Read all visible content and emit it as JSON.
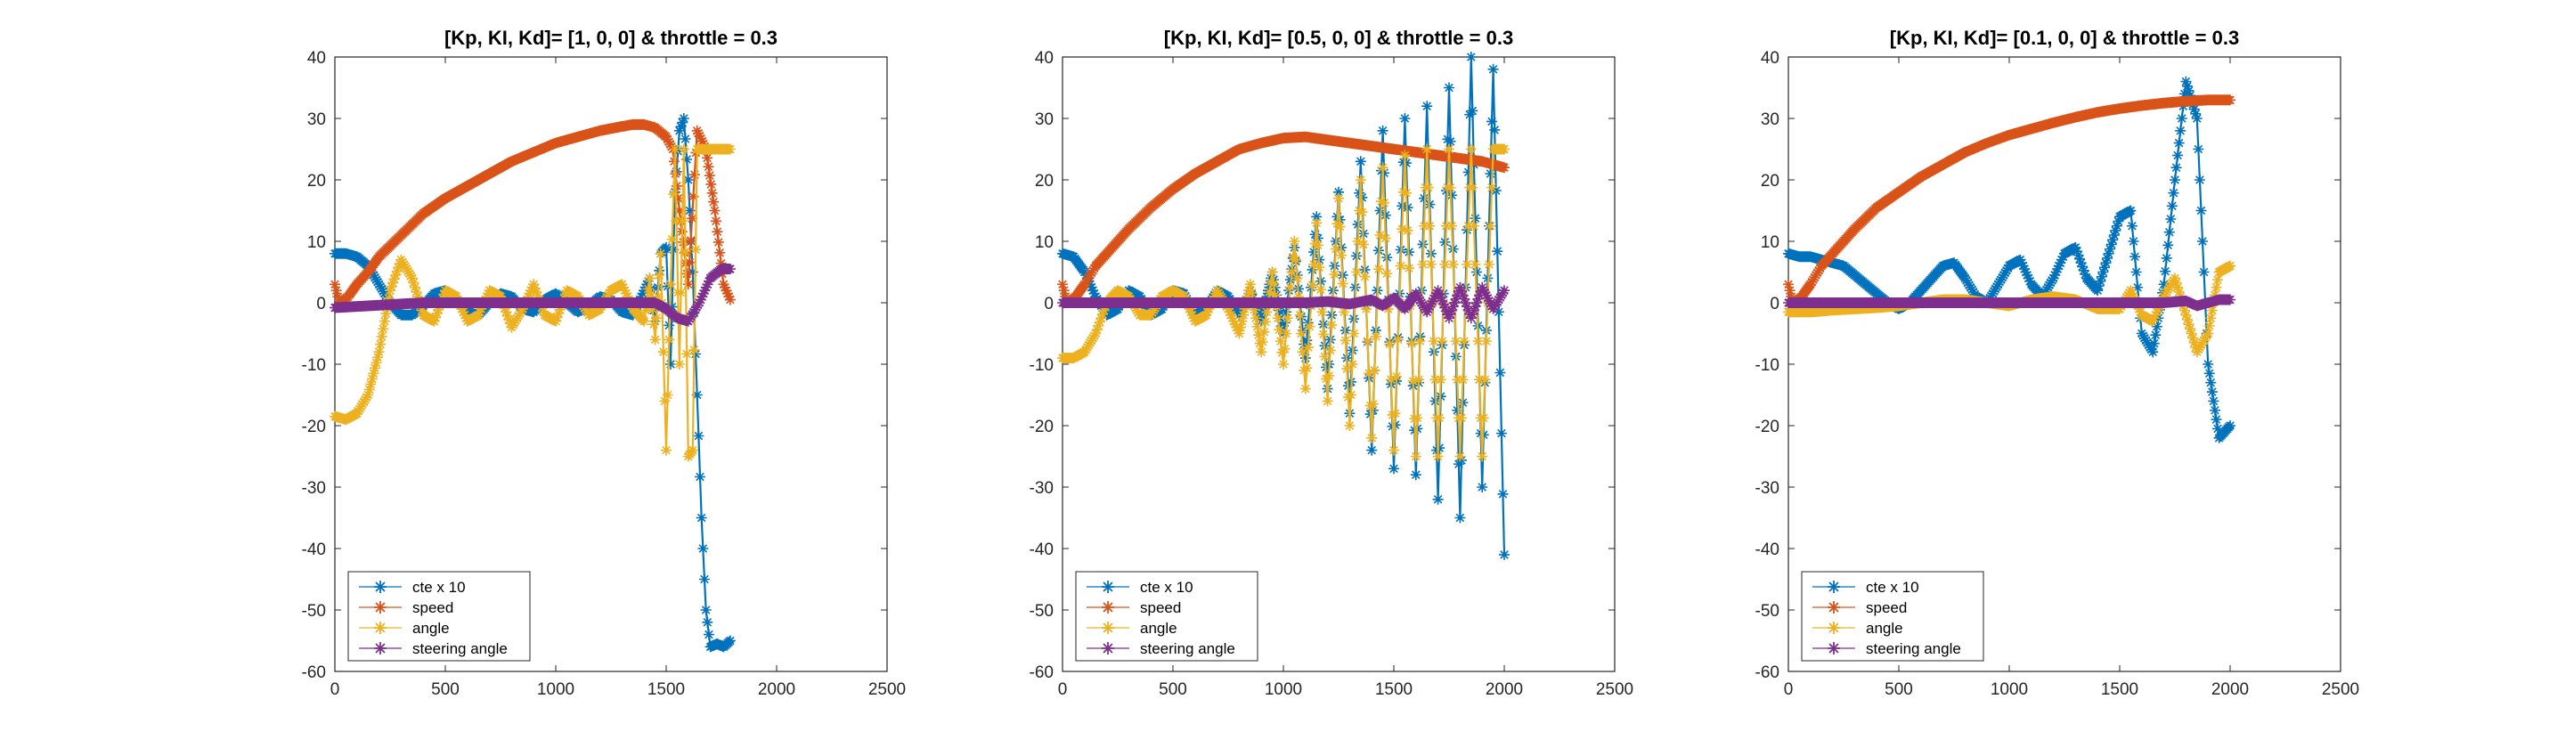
{
  "chart_data": [
    {
      "type": "line",
      "title": "[Kp, KI, Kd]= [1, 0, 0] & throttle = 0.3",
      "xlabel": "",
      "ylabel": "",
      "xlim": [
        0,
        2500
      ],
      "ylim": [
        -60,
        40
      ],
      "xticks": [
        0,
        500,
        1000,
        1500,
        2000,
        2500
      ],
      "yticks": [
        -60,
        -50,
        -40,
        -30,
        -20,
        -10,
        0,
        10,
        20,
        30,
        40
      ],
      "grid": false,
      "legend_position": "bottom-left",
      "series": [
        {
          "name": "cte x 10",
          "color": "#0072BD",
          "x": [
            0,
            50,
            100,
            150,
            200,
            250,
            300,
            350,
            400,
            450,
            500,
            550,
            600,
            650,
            700,
            750,
            800,
            850,
            900,
            950,
            1000,
            1050,
            1100,
            1150,
            1200,
            1250,
            1300,
            1350,
            1400,
            1425,
            1450,
            1475,
            1500,
            1520,
            1540,
            1560,
            1580,
            1600,
            1620,
            1640,
            1660,
            1680,
            1700,
            1730,
            1760,
            1790
          ],
          "y": [
            8,
            8,
            7.5,
            6,
            3,
            0,
            -2,
            -2,
            -0.5,
            1.5,
            2,
            0.5,
            -1.5,
            -2,
            0,
            1.5,
            1,
            -1,
            -1.5,
            0.5,
            1.5,
            0,
            -1.5,
            -0.5,
            1,
            0.5,
            -1.5,
            -2,
            2,
            4,
            -3,
            8,
            9,
            -10,
            18,
            28,
            30,
            20,
            5,
            -15,
            -35,
            -50,
            -56,
            -55.5,
            -56,
            -55
          ]
        },
        {
          "name": "speed",
          "color": "#D95319",
          "x": [
            0,
            20,
            40,
            60,
            100,
            150,
            200,
            300,
            400,
            500,
            600,
            700,
            800,
            900,
            1000,
            1100,
            1200,
            1300,
            1350,
            1400,
            1450,
            1500,
            1530,
            1560,
            1600,
            1640,
            1680,
            1720,
            1760,
            1790
          ],
          "y": [
            3,
            0,
            0.5,
            1,
            3,
            5,
            7.5,
            11,
            14.5,
            17,
            19,
            21,
            23,
            24.5,
            26,
            27,
            28,
            28.7,
            29,
            29,
            28.5,
            27,
            25,
            15,
            3,
            28,
            25,
            15,
            3,
            0.5
          ]
        },
        {
          "name": "angle",
          "color": "#EDB120",
          "x": [
            0,
            50,
            100,
            150,
            200,
            250,
            300,
            350,
            400,
            450,
            500,
            550,
            600,
            650,
            700,
            750,
            800,
            850,
            900,
            950,
            1000,
            1050,
            1100,
            1150,
            1200,
            1250,
            1300,
            1350,
            1400,
            1425,
            1450,
            1475,
            1500,
            1520,
            1540,
            1560,
            1580,
            1600,
            1620,
            1640,
            1660,
            1680,
            1700,
            1720,
            1760,
            1790
          ],
          "y": [
            -18.5,
            -19,
            -18,
            -15,
            -8,
            2,
            7,
            4,
            -2,
            -3,
            2,
            1,
            -3,
            -2,
            2,
            1,
            -4,
            -1,
            3,
            -2,
            -3,
            2,
            1,
            -2,
            -1,
            2,
            3,
            -1,
            -3,
            4,
            -6,
            8,
            -24,
            3,
            25,
            -10,
            25,
            -25,
            -24,
            25,
            25,
            25,
            25,
            25,
            25,
            25
          ]
        },
        {
          "name": "steering angle",
          "color": "#7E2F8E",
          "x": [
            0,
            100,
            200,
            300,
            400,
            500,
            600,
            700,
            800,
            900,
            1000,
            1100,
            1200,
            1300,
            1400,
            1450,
            1500,
            1550,
            1600,
            1650,
            1700,
            1750,
            1790
          ],
          "y": [
            -0.8,
            -0.6,
            -0.4,
            -0.2,
            0,
            0,
            0,
            0,
            0,
            0,
            0,
            0,
            0,
            0,
            0,
            0,
            -1,
            -2.5,
            -3,
            0,
            4,
            5.5,
            5.5
          ]
        }
      ]
    },
    {
      "type": "line",
      "title": "[Kp, KI, Kd]= [0.5, 0, 0] & throttle = 0.3",
      "xlabel": "",
      "ylabel": "",
      "xlim": [
        0,
        2500
      ],
      "ylim": [
        -60,
        40
      ],
      "xticks": [
        0,
        500,
        1000,
        1500,
        2000,
        2500
      ],
      "yticks": [
        -60,
        -50,
        -40,
        -30,
        -20,
        -10,
        0,
        10,
        20,
        30,
        40
      ],
      "grid": false,
      "legend_position": "bottom-left",
      "series": [
        {
          "name": "cte x 10",
          "color": "#0072BD",
          "x": [
            0,
            50,
            100,
            150,
            200,
            250,
            300,
            350,
            400,
            450,
            500,
            550,
            600,
            650,
            700,
            750,
            800,
            850,
            900,
            950,
            1000,
            1050,
            1100,
            1150,
            1200,
            1250,
            1300,
            1350,
            1400,
            1450,
            1500,
            1550,
            1600,
            1650,
            1700,
            1750,
            1800,
            1850,
            1900,
            1950,
            2000
          ],
          "y": [
            8,
            7.5,
            5,
            1,
            -2,
            -1,
            2,
            1,
            -2,
            -1,
            2,
            1.5,
            -2,
            -1,
            2,
            1,
            -2,
            2,
            -3,
            5,
            -5,
            9,
            -9,
            14,
            -14,
            18,
            -18,
            23,
            -24,
            28,
            -27,
            30,
            -28,
            32,
            -32,
            35,
            -35,
            40,
            -30,
            38,
            -41
          ]
        },
        {
          "name": "speed",
          "color": "#D95319",
          "x": [
            0,
            20,
            40,
            60,
            100,
            150,
            200,
            300,
            400,
            500,
            600,
            700,
            800,
            900,
            1000,
            1100,
            1200,
            1300,
            1400,
            1500,
            1600,
            1700,
            1800,
            1900,
            2000
          ],
          "y": [
            3,
            0,
            0.5,
            1,
            3,
            6,
            8,
            12,
            15.5,
            18.5,
            21,
            23,
            25,
            26,
            26.8,
            27,
            26.5,
            26,
            25.5,
            25,
            24.5,
            24,
            23.5,
            23,
            22
          ]
        },
        {
          "name": "angle",
          "color": "#EDB120",
          "x": [
            0,
            50,
            100,
            150,
            200,
            250,
            300,
            350,
            400,
            450,
            500,
            550,
            600,
            650,
            700,
            750,
            800,
            850,
            900,
            950,
            1000,
            1050,
            1100,
            1150,
            1200,
            1250,
            1300,
            1350,
            1400,
            1450,
            1500,
            1550,
            1600,
            1650,
            1700,
            1750,
            1800,
            1850,
            1900,
            1950,
            2000
          ],
          "y": [
            -9,
            -9,
            -8,
            -5,
            0,
            2,
            1,
            -2,
            -2,
            1,
            2,
            1,
            -3,
            -2,
            2,
            -1,
            -5,
            3,
            -8,
            5,
            -10,
            10,
            -14,
            13,
            -16,
            17,
            -20,
            20,
            -22,
            22,
            -24,
            24,
            -25,
            25,
            -25,
            25,
            -25,
            25,
            -25,
            25,
            25
          ]
        },
        {
          "name": "steering angle",
          "color": "#7E2F8E",
          "x": [
            0,
            100,
            200,
            300,
            400,
            500,
            600,
            700,
            800,
            900,
            1000,
            1100,
            1200,
            1300,
            1400,
            1450,
            1500,
            1550,
            1600,
            1650,
            1700,
            1750,
            1800,
            1850,
            1900,
            1950,
            2000
          ],
          "y": [
            0,
            0,
            0,
            0,
            0,
            0,
            0,
            0,
            0,
            0,
            0,
            0,
            0.2,
            -0.2,
            0.5,
            -0.5,
            0.8,
            -1,
            1.5,
            -1.5,
            2,
            -2.5,
            2.5,
            -2.5,
            2.5,
            -1,
            2
          ]
        }
      ]
    },
    {
      "type": "line",
      "title": "[Kp, KI, Kd]= [0.1, 0, 0] & throttle = 0.3",
      "xlabel": "",
      "ylabel": "",
      "xlim": [
        0,
        2500
      ],
      "ylim": [
        -60,
        40
      ],
      "xticks": [
        0,
        500,
        1000,
        1500,
        2000,
        2500
      ],
      "yticks": [
        -60,
        -50,
        -40,
        -30,
        -20,
        -10,
        0,
        10,
        20,
        30,
        40
      ],
      "grid": false,
      "legend_position": "bottom-left",
      "series": [
        {
          "name": "cte x 10",
          "color": "#0072BD",
          "x": [
            0,
            50,
            100,
            150,
            200,
            250,
            300,
            350,
            400,
            450,
            500,
            550,
            600,
            650,
            700,
            750,
            800,
            850,
            900,
            950,
            1000,
            1050,
            1100,
            1150,
            1200,
            1250,
            1300,
            1350,
            1400,
            1450,
            1500,
            1550,
            1600,
            1650,
            1700,
            1750,
            1800,
            1850,
            1900,
            1950,
            2000
          ],
          "y": [
            8,
            7.5,
            7.5,
            7,
            6.5,
            6,
            4.5,
            3,
            1.5,
            0,
            -1,
            0,
            2,
            4,
            6,
            6.5,
            4,
            1,
            0,
            3,
            6,
            7,
            3,
            1,
            4,
            8,
            9,
            4,
            2,
            8,
            14,
            15,
            -5,
            -8,
            3,
            20,
            36,
            30,
            -10,
            -22,
            -20
          ]
        },
        {
          "name": "speed",
          "color": "#D95319",
          "x": [
            0,
            20,
            40,
            60,
            100,
            150,
            200,
            300,
            400,
            500,
            600,
            700,
            800,
            900,
            1000,
            1100,
            1200,
            1300,
            1400,
            1500,
            1600,
            1700,
            1800,
            1900,
            2000
          ],
          "y": [
            3,
            0,
            0.5,
            1,
            3,
            6,
            8,
            12,
            15.5,
            18,
            20.5,
            22.5,
            24.5,
            26,
            27.3,
            28.3,
            29.3,
            30.2,
            31,
            31.6,
            32.1,
            32.5,
            32.8,
            33,
            33
          ]
        },
        {
          "name": "angle",
          "color": "#EDB120",
          "x": [
            0,
            100,
            200,
            300,
            400,
            500,
            600,
            700,
            800,
            900,
            1000,
            1100,
            1200,
            1300,
            1400,
            1500,
            1550,
            1600,
            1650,
            1700,
            1750,
            1800,
            1850,
            1900,
            1950,
            2000
          ],
          "y": [
            -1.5,
            -1.5,
            -1.2,
            -1,
            -0.8,
            -0.5,
            0,
            0.5,
            0.5,
            0,
            -0.5,
            0.5,
            1,
            0.5,
            -1,
            -1,
            2,
            -2,
            -3,
            1,
            4,
            -2,
            -8,
            -5,
            5,
            6
          ]
        },
        {
          "name": "steering angle",
          "color": "#7E2F8E",
          "x": [
            0,
            200,
            400,
            600,
            800,
            1000,
            1200,
            1400,
            1600,
            1700,
            1800,
            1850,
            1900,
            1950,
            2000
          ],
          "y": [
            0,
            0,
            0,
            0,
            0,
            0,
            0,
            0,
            0,
            0,
            0.3,
            -0.5,
            0,
            0.5,
            0.5
          ]
        }
      ]
    }
  ]
}
